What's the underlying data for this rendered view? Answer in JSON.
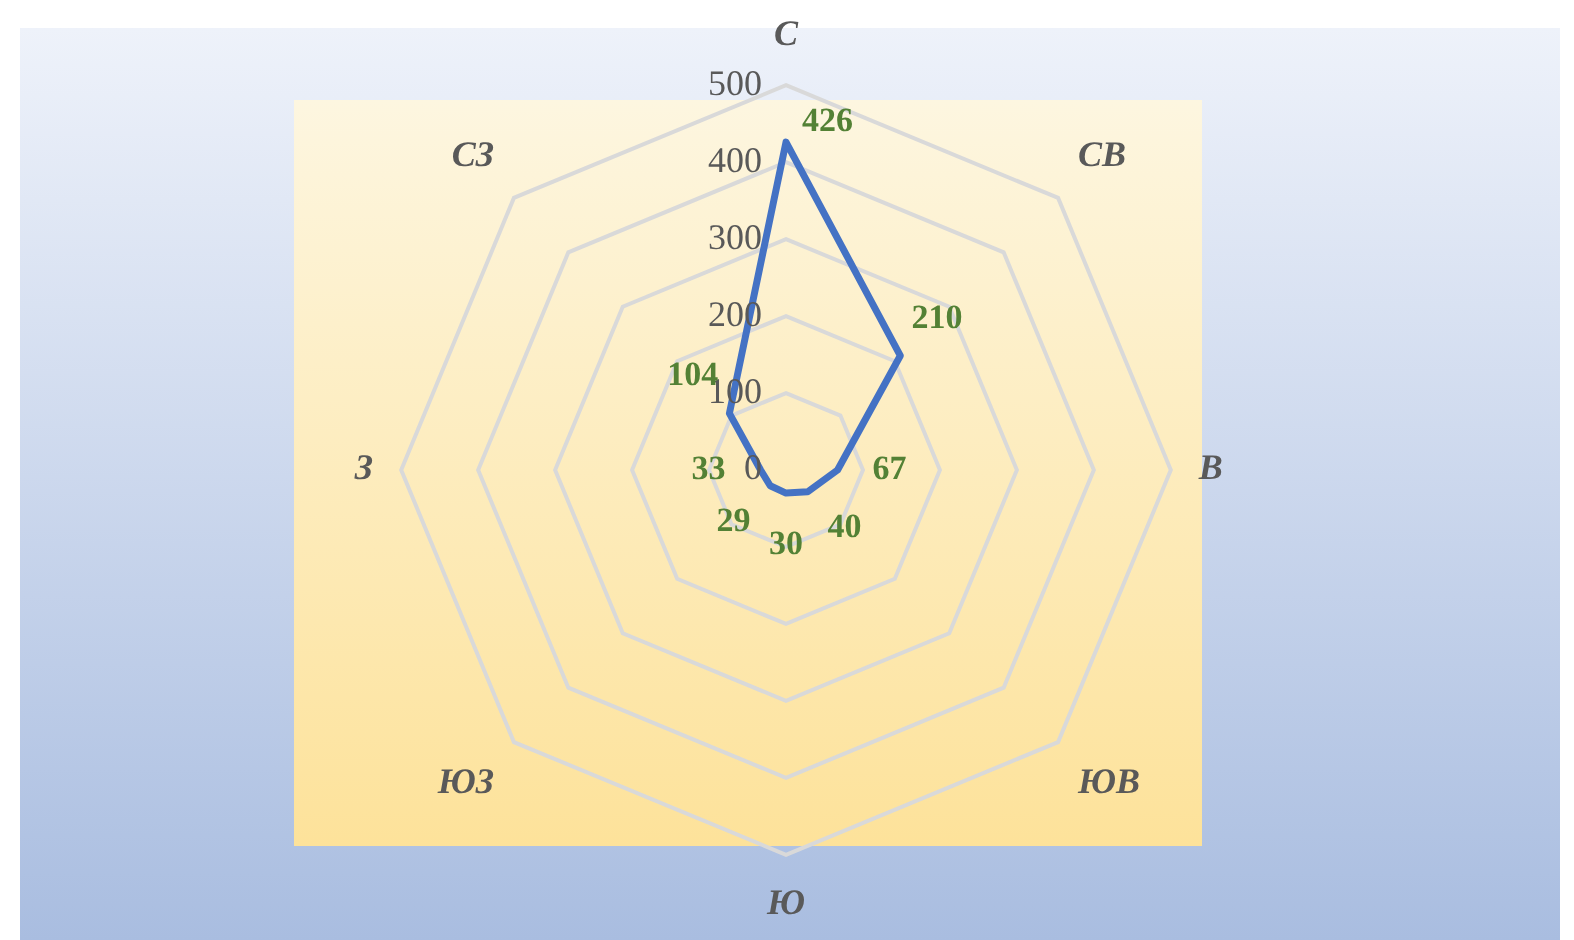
{
  "chart_data": {
    "type": "radar",
    "categories": [
      "С",
      "СВ",
      "В",
      "ЮВ",
      "Ю",
      "ЮЗ",
      "З",
      "СЗ"
    ],
    "series": [
      {
        "color": "#4472c4",
        "values": [
          426,
          210,
          67,
          40,
          30,
          29,
          33,
          104
        ]
      }
    ],
    "ylim": [
      0,
      500
    ],
    "yticks": [
      0,
      100,
      200,
      300,
      400,
      500
    ],
    "data_labels": true,
    "grid": true,
    "legend": false,
    "marker": "none"
  }
}
